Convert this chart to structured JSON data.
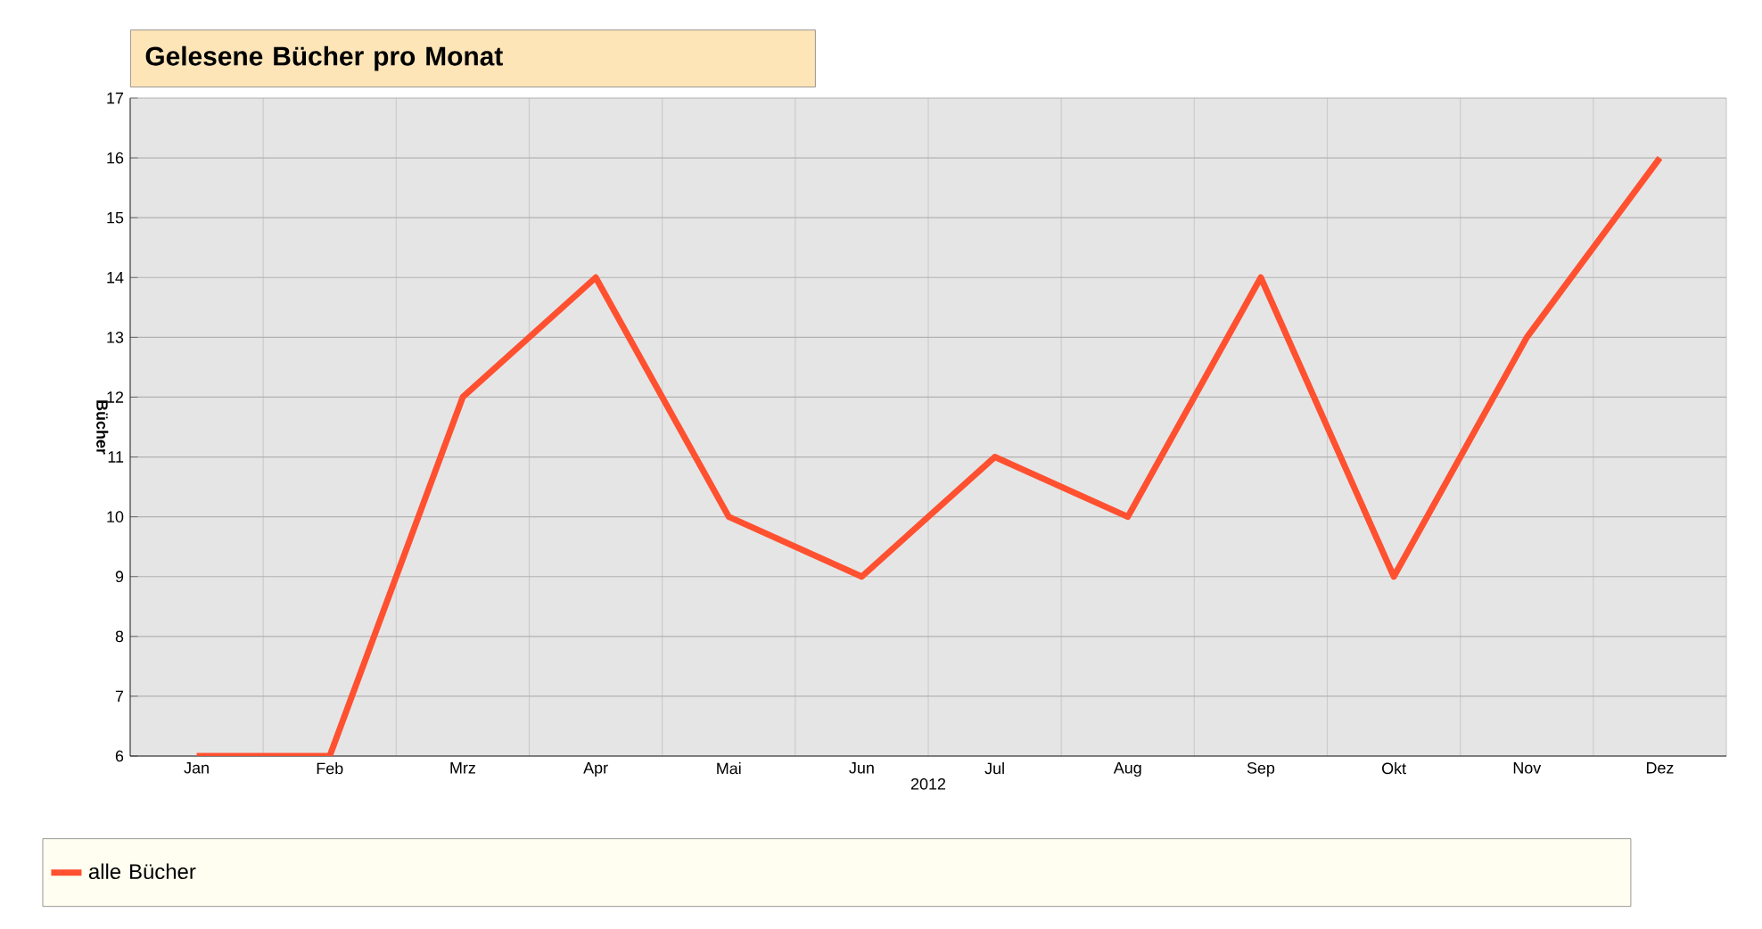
{
  "chart_data": {
    "type": "line",
    "title": "Gelesene Bücher pro Monat",
    "xlabel": "2012",
    "ylabel": "Bücher",
    "categories": [
      "Jan",
      "Feb",
      "Mrz",
      "Apr",
      "Mai",
      "Jun",
      "Jul",
      "Aug",
      "Sep",
      "Okt",
      "Nov",
      "Dez"
    ],
    "series": [
      {
        "name": "alle Bücher",
        "color": "#ff5030",
        "values": [
          6,
          6,
          12,
          14,
          10,
          9,
          11,
          10,
          14,
          9,
          13,
          16
        ]
      }
    ],
    "ylim": [
      6,
      17
    ],
    "yticks": [
      6,
      7,
      8,
      9,
      10,
      11,
      12,
      13,
      14,
      15,
      16,
      17
    ],
    "grid": true,
    "legend": "bottom",
    "marker": "none",
    "line_style": "solid"
  }
}
